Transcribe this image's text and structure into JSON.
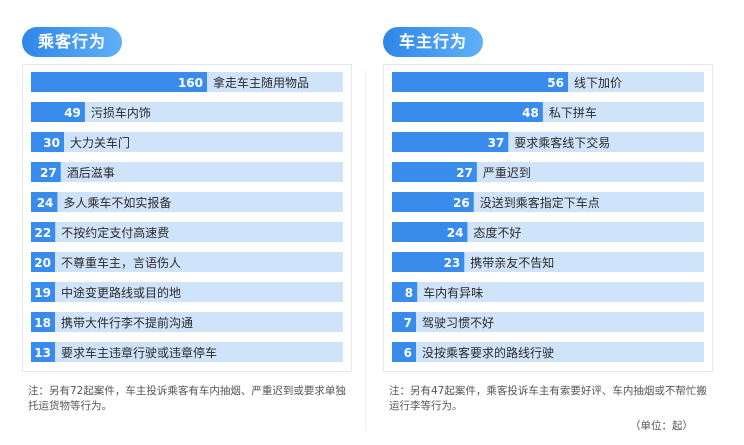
{
  "chart_data": [
    {
      "type": "bar",
      "orientation": "horizontal",
      "title": "乘客行为",
      "categories": [
        "拿走车主随用物品",
        "污损车内饰",
        "大力关车门",
        "酒后滋事",
        "多人乘车不如实报备",
        "不按约定支付高速费",
        "不尊重车主，言语伤人",
        "中途变更路线或目的地",
        "携带大件行李不提前沟通",
        "要求车主违章行驶或违章停车"
      ],
      "values": [
        160,
        49,
        30,
        27,
        24,
        22,
        20,
        19,
        18,
        13
      ],
      "value_labels": [
        "160",
        "49",
        "30",
        "27",
        "24",
        "22",
        "20",
        "19",
        "18",
        "13"
      ],
      "xlim": [
        0,
        160
      ],
      "note": "注：另有72起案件，车主投诉乘客有车内抽烟、严重迟到或要求单独托运货物等行为。"
    },
    {
      "type": "bar",
      "orientation": "horizontal",
      "title": "车主行为",
      "categories": [
        "线下加价",
        "私下拼车",
        "要求乘客线下交易",
        "严重迟到",
        "没送到乘客指定下车点",
        "态度不好",
        "携带亲友不告知",
        "车内有异味",
        "驾驶习惯不好",
        "没按乘客要求的路线行驶"
      ],
      "values": [
        56,
        48,
        37,
        27,
        26,
        24,
        23,
        8,
        7,
        6
      ],
      "value_labels": [
        "56",
        "48",
        "37",
        "27",
        "26",
        "24",
        "23",
        "8",
        "7",
        "6"
      ],
      "xlim": [
        0,
        56
      ],
      "note": "注：另有47起案件，乘客投诉车主有索要好评、车内抽烟或不帮忙搬运行李等行为。",
      "unit": "（单位：起）"
    }
  ],
  "colors": {
    "bar_dark": "#3a8cec",
    "bar_light": "#cfe3fa",
    "tag": "#3a8cec"
  }
}
